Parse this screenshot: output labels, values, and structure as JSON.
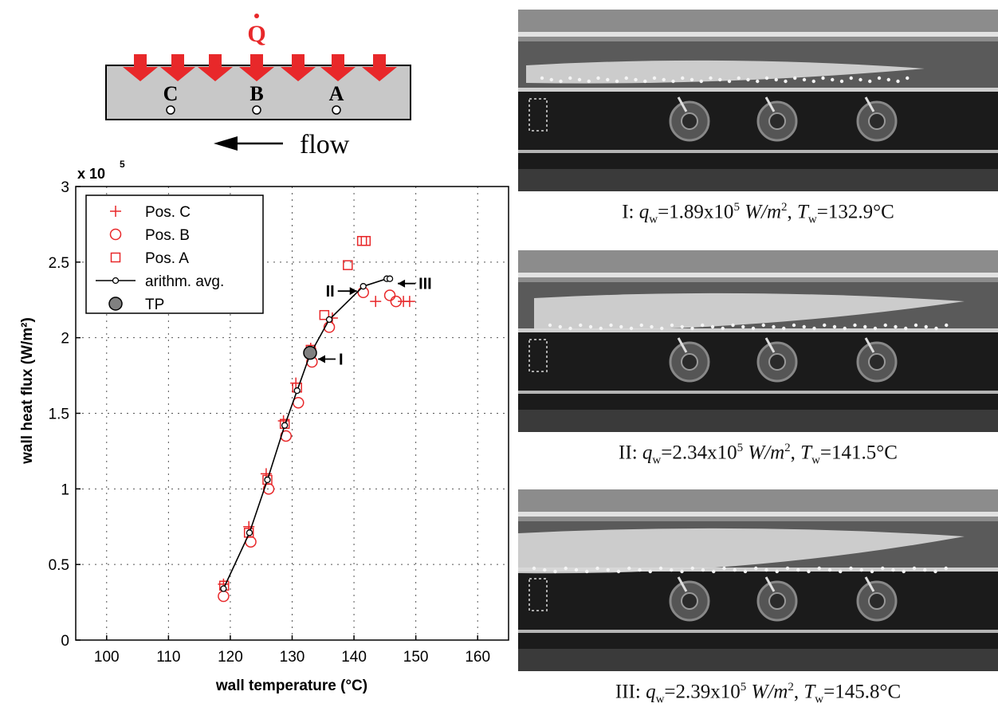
{
  "diagram": {
    "heat_symbol": "Q",
    "sensor_labels": [
      "C",
      "B",
      "A"
    ],
    "flow_label": "flow",
    "arrow_color": "#e8282a"
  },
  "chart_data": {
    "type": "scatter",
    "title": "",
    "xlabel": "wall temperature (°C)",
    "ylabel": "wall heat flux (W/m²)",
    "y_multiplier": "x 10",
    "y_multiplier_exp": "5",
    "xlim": [
      95,
      165
    ],
    "ylim": [
      0,
      3
    ],
    "xticks": [
      100,
      110,
      120,
      130,
      140,
      150,
      160
    ],
    "yticks": [
      0,
      0.5,
      1,
      1.5,
      2,
      2.5,
      3
    ],
    "ytick_labels": [
      "0",
      "0.5",
      "1",
      "1.5",
      "2",
      "2.5",
      "3"
    ],
    "grid": true,
    "legend_position": "top-left",
    "series": [
      {
        "name": "Pos. C",
        "marker": "plus",
        "color": "#e8282a",
        "x": [
          118.9,
          123.0,
          125.8,
          128.6,
          130.6,
          133.0,
          136.5,
          143.5,
          148.0,
          149.0
        ],
        "y": [
          0.37,
          0.75,
          1.1,
          1.45,
          1.7,
          1.93,
          2.13,
          2.24,
          2.24,
          2.24
        ]
      },
      {
        "name": "Pos. B",
        "marker": "circle",
        "color": "#e8282a",
        "x": [
          118.9,
          123.3,
          126.2,
          129.0,
          131.0,
          133.2,
          136.0,
          141.5,
          145.8,
          146.8
        ],
        "y": [
          0.29,
          0.65,
          1.0,
          1.35,
          1.57,
          1.84,
          2.07,
          2.3,
          2.28,
          2.24
        ]
      },
      {
        "name": "Pos. A",
        "marker": "square",
        "color": "#e8282a",
        "x": [
          119.0,
          123.0,
          126.0,
          128.8,
          130.8,
          133.0,
          135.2,
          139.0,
          141.3,
          141.9
        ],
        "y": [
          0.36,
          0.71,
          1.06,
          1.43,
          1.67,
          1.92,
          2.15,
          2.48,
          2.64,
          2.64
        ]
      },
      {
        "name": "arithm. avg.",
        "marker": "line-circle",
        "color": "#000000",
        "x": [
          118.9,
          123.1,
          126.0,
          128.8,
          130.8,
          132.9,
          136.0,
          141.5,
          145.3,
          145.8
        ],
        "y": [
          0.34,
          0.71,
          1.06,
          1.42,
          1.65,
          1.89,
          2.12,
          2.34,
          2.39,
          2.39
        ]
      },
      {
        "name": "TP",
        "marker": "filled-circle",
        "color": "#808080",
        "x": [
          132.9
        ],
        "y": [
          1.9
        ]
      }
    ],
    "annotations": [
      {
        "text": "I",
        "x": 132.9,
        "y": 1.89,
        "side": "right"
      },
      {
        "text": "II",
        "x": 141.5,
        "y": 2.34,
        "side": "left"
      },
      {
        "text": "III",
        "x": 145.8,
        "y": 2.39,
        "side": "right"
      }
    ]
  },
  "photos": [
    {
      "roman": "I",
      "q_value": "=1.89x10",
      "t_value": "=132.9°C"
    },
    {
      "roman": "II",
      "q_value": "=2.34x10",
      "t_value": "=141.5°C"
    },
    {
      "roman": "III",
      "q_value": "=2.39x10",
      "t_value": "=145.8°C"
    }
  ],
  "caption_parts": {
    "q_sym": "q",
    "t_sym": "T",
    "sub": "w",
    "exp": "5",
    "units": "W/m",
    "units_exp": "2"
  }
}
